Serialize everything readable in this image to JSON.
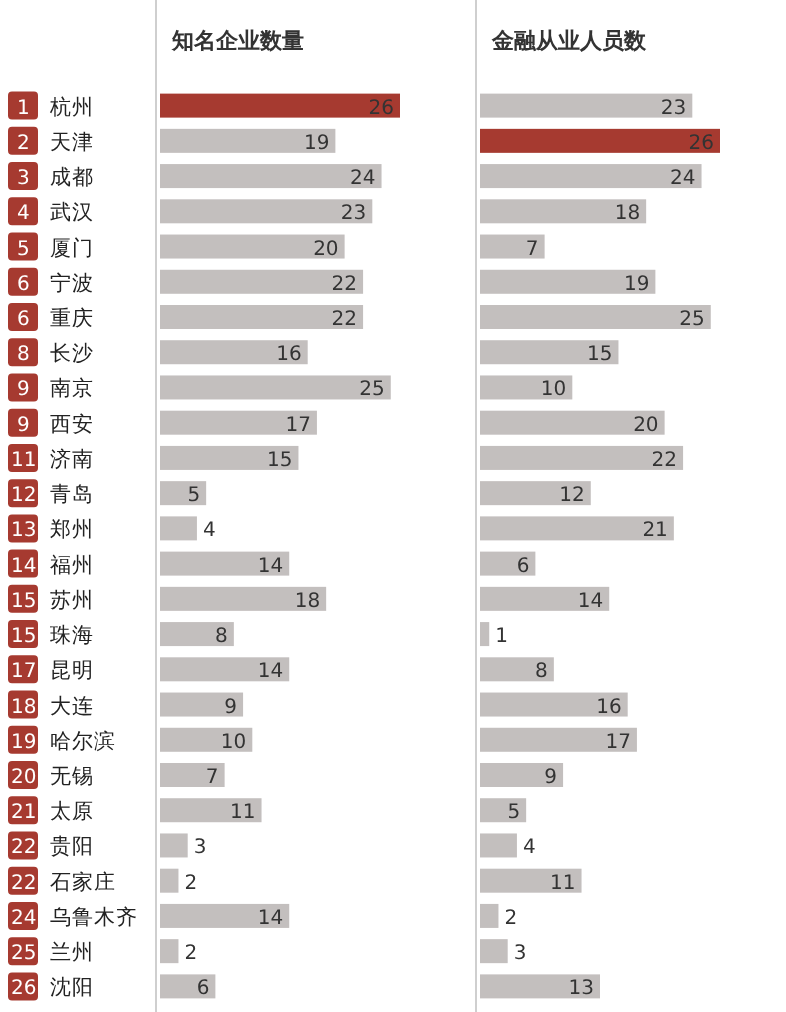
{
  "chart_data": [
    {
      "type": "bar",
      "orientation": "horizontal",
      "title": "知名企业数量",
      "data_labels": true,
      "categories": [
        "1 杭州",
        "2 天津",
        "3 成都",
        "4 武汉",
        "5 厦门",
        "6 宁波",
        "6 重庆",
        "8 长沙",
        "9 南京",
        "9 西安",
        "11 济南",
        "12 青岛",
        "13 郑州",
        "14 福州",
        "15 苏州",
        "15 珠海",
        "17 昆明",
        "18 大连",
        "19 哈尔滨",
        "20 无锡",
        "21 太原",
        "22 贵阳",
        "22 石家庄",
        "24 乌鲁木齐",
        "25 兰州",
        "26 沈阳"
      ],
      "values": [
        26,
        19,
        24,
        23,
        20,
        22,
        22,
        16,
        25,
        17,
        15,
        5,
        4,
        14,
        18,
        8,
        14,
        9,
        10,
        7,
        11,
        3,
        2,
        14,
        2,
        6
      ],
      "colors": [
        "#a63a30",
        "#c3bfbe",
        "#c3bfbe",
        "#c3bfbe",
        "#c3bfbe",
        "#c3bfbe",
        "#c3bfbe",
        "#c3bfbe",
        "#c3bfbe",
        "#c3bfbe",
        "#c3bfbe",
        "#c3bfbe",
        "#c3bfbe",
        "#c3bfbe",
        "#c3bfbe",
        "#c3bfbe",
        "#c3bfbe",
        "#c3bfbe",
        "#c3bfbe",
        "#c3bfbe",
        "#c3bfbe",
        "#c3bfbe",
        "#c3bfbe",
        "#c3bfbe",
        "#c3bfbe",
        "#c3bfbe"
      ]
    },
    {
      "type": "bar",
      "orientation": "horizontal",
      "title": "金融从业人员数",
      "data_labels": true,
      "categories": [
        null,
        null,
        null,
        null,
        null,
        null,
        null,
        null,
        null,
        null,
        null,
        null,
        null,
        null,
        null,
        null,
        null,
        null,
        null,
        null,
        null,
        null,
        null,
        null,
        null,
        null
      ],
      "values": [
        23,
        26,
        24,
        18,
        7,
        19,
        25,
        15,
        10,
        20,
        22,
        12,
        21,
        6,
        14,
        1,
        8,
        16,
        17,
        9,
        5,
        4,
        11,
        2,
        3,
        13
      ],
      "colors": [
        "#c3bfbe",
        "#a63a30",
        "#c3bfbe",
        "#c3bfbe",
        "#c3bfbe",
        "#c3bfbe",
        "#c3bfbe",
        "#c3bfbe",
        "#c3bfbe",
        "#c3bfbe",
        "#c3bfbe",
        "#c3bfbe",
        "#c3bfbe",
        "#c3bfbe",
        "#c3bfbe",
        "#c3bfbe",
        "#c3bfbe",
        "#c3bfbe",
        "#c3bfbe",
        "#c3bfbe",
        "#c3bfbe",
        "#c3bfbe",
        "#c3bfbe",
        "#c3bfbe",
        "#c3bfbe",
        "#c3bfbe"
      ]
    }
  ]
}
